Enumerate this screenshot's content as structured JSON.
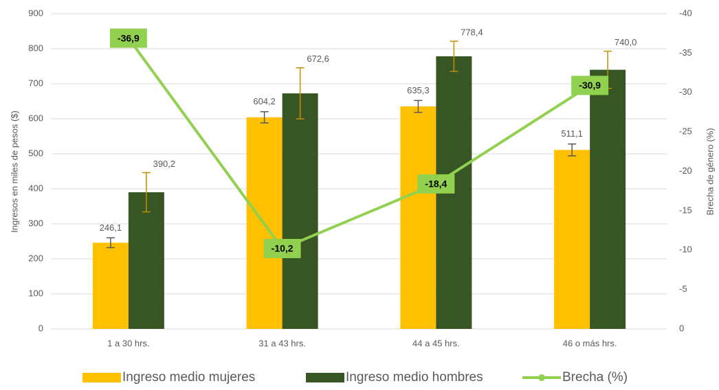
{
  "chart_data": {
    "type": "bar",
    "categories": [
      "1 a 30 hrs.",
      "31 a 43 hrs.",
      "44 a 45 hrs.",
      "46 o más hrs."
    ],
    "series": [
      {
        "name": "Ingreso medio mujeres",
        "color": "#ffc000",
        "error_color": "#595959",
        "values": [
          246.1,
          604.2,
          635.3,
          511.1
        ],
        "value_labels": [
          "246,1",
          "604,2",
          "635,3",
          "511,1"
        ],
        "errors": [
          14,
          16,
          17,
          17
        ]
      },
      {
        "name": "Ingreso medio hombres",
        "color": "#375623",
        "error_color": "#bf9000",
        "values": [
          390.2,
          672.6,
          778.4,
          740.0
        ],
        "value_labels": [
          "390,2",
          "672,6",
          "778,4",
          "740,0"
        ],
        "errors": [
          56,
          73,
          43,
          53
        ]
      },
      {
        "name": "Brecha (%)",
        "type": "line",
        "axis": "y2",
        "color": "#92d050",
        "values": [
          -36.9,
          -10.2,
          -18.4,
          -30.9
        ],
        "value_labels": [
          "-36,9",
          "-10,2",
          "-18,4",
          "-30,9"
        ]
      }
    ],
    "ylabel": "Ingresos en miles de pesos ($)",
    "y2label": "Brecha de género (%)",
    "ylim": [
      0,
      900
    ],
    "yticks": [
      0,
      100,
      200,
      300,
      400,
      500,
      600,
      700,
      800,
      900
    ],
    "y2lim": [
      0,
      -40
    ],
    "y2ticks": [
      0,
      -5,
      -10,
      -15,
      -20,
      -25,
      -30,
      -35,
      -40
    ],
    "grid": true,
    "legend": "bottom"
  }
}
